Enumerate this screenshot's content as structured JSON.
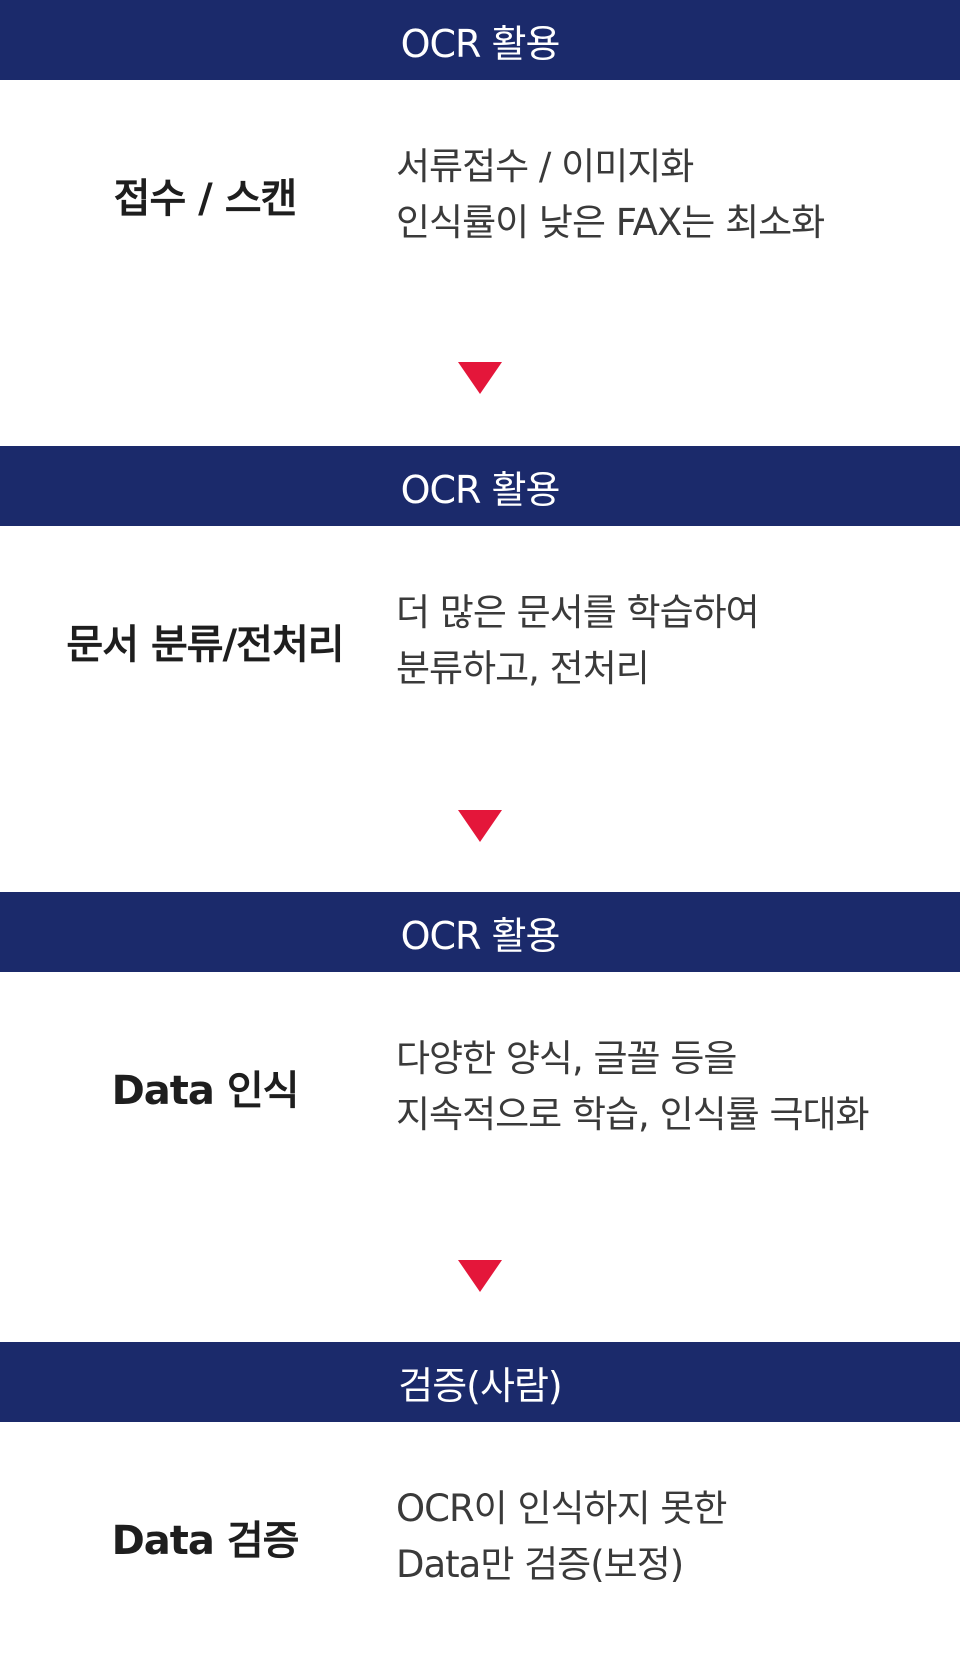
{
  "steps": [
    {
      "header": "OCR 활용",
      "title": "접수 / 스캔",
      "desc_line1": "서류접수 / 이미지화",
      "desc_line2": "인식률이 낮은 FAX는 최소화"
    },
    {
      "header": "OCR 활용",
      "title": "문서 분류/전처리",
      "desc_line1": "더 많은 문서를 학습하여",
      "desc_line2": "분류하고, 전처리"
    },
    {
      "header": "OCR 활용",
      "title": "Data 인식",
      "desc_line1": "다양한 양식, 글꼴 등을",
      "desc_line2": "지속적으로 학습, 인식률 극대화"
    },
    {
      "header": "검증(사람)",
      "title": "Data 검증",
      "desc_line1": "OCR이 인식하지 못한",
      "desc_line2": "Data만 검증(보정)"
    }
  ],
  "colors": {
    "header_band": "#1b2a6b",
    "arrow": "#e4163a"
  }
}
